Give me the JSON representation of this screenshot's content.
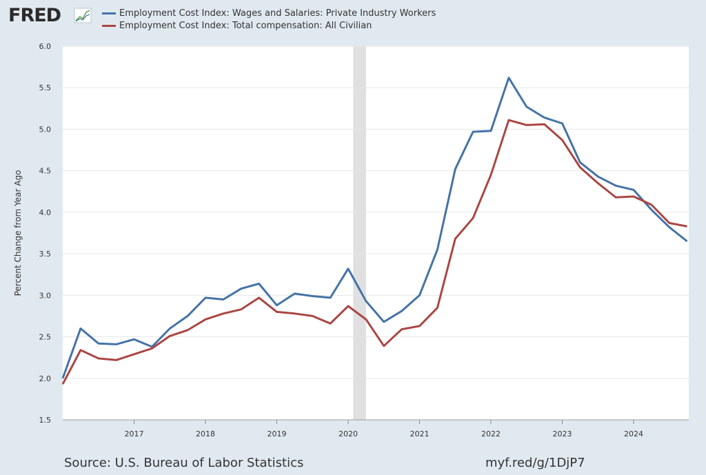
{
  "logo": {
    "text": "FRED"
  },
  "chart_data": {
    "type": "line",
    "title": "",
    "xlabel": "",
    "ylabel": "Percent Change from Year Ago",
    "ylim": [
      1.5,
      6.0
    ],
    "xlim": [
      2016.0,
      2024.75
    ],
    "yticks": [
      "1.5",
      "2.0",
      "2.5",
      "3.0",
      "3.5",
      "4.0",
      "4.5",
      "5.0",
      "5.5",
      "6.0"
    ],
    "xticks": [
      "2017",
      "2018",
      "2019",
      "2020",
      "2021",
      "2022",
      "2023",
      "2024"
    ],
    "recession": {
      "start": 2020.07,
      "end": 2020.25
    },
    "x": [
      2016.0,
      2016.25,
      2016.5,
      2016.75,
      2017.0,
      2017.25,
      2017.5,
      2017.75,
      2018.0,
      2018.25,
      2018.5,
      2018.75,
      2019.0,
      2019.25,
      2019.5,
      2019.75,
      2020.0,
      2020.25,
      2020.5,
      2020.75,
      2021.0,
      2021.25,
      2021.5,
      2021.75,
      2022.0,
      2022.25,
      2022.5,
      2022.75,
      2023.0,
      2023.25,
      2023.5,
      2023.75,
      2024.0,
      2024.25,
      2024.5,
      2024.75
    ],
    "series": [
      {
        "name": "Employment Cost Index: Wages and Salaries: Private Industry Workers",
        "color": "#4572a7",
        "values": [
          2.0,
          2.6,
          2.42,
          2.41,
          2.47,
          2.38,
          2.6,
          2.75,
          2.97,
          2.95,
          3.08,
          3.14,
          2.88,
          3.02,
          2.99,
          2.97,
          3.32,
          2.93,
          2.68,
          2.81,
          3.0,
          3.55,
          4.52,
          4.97,
          4.98,
          5.62,
          5.27,
          5.14,
          5.07,
          4.6,
          4.43,
          4.32,
          4.27,
          4.03,
          3.82,
          3.65
        ]
      },
      {
        "name": "Employment Cost Index: Total compensation: All Civilian",
        "color": "#aa4643",
        "values": [
          1.93,
          2.34,
          2.24,
          2.22,
          2.29,
          2.36,
          2.51,
          2.58,
          2.71,
          2.78,
          2.83,
          2.97,
          2.8,
          2.78,
          2.75,
          2.66,
          2.87,
          2.71,
          2.39,
          2.59,
          2.63,
          2.85,
          3.68,
          3.93,
          4.45,
          5.11,
          5.05,
          5.06,
          4.87,
          4.54,
          4.35,
          4.18,
          4.19,
          4.09,
          3.87,
          3.83
        ]
      }
    ]
  },
  "footer": {
    "source": "Source: U.S. Bureau of Labor Statistics",
    "link": "myf.red/g/1DjP7"
  }
}
